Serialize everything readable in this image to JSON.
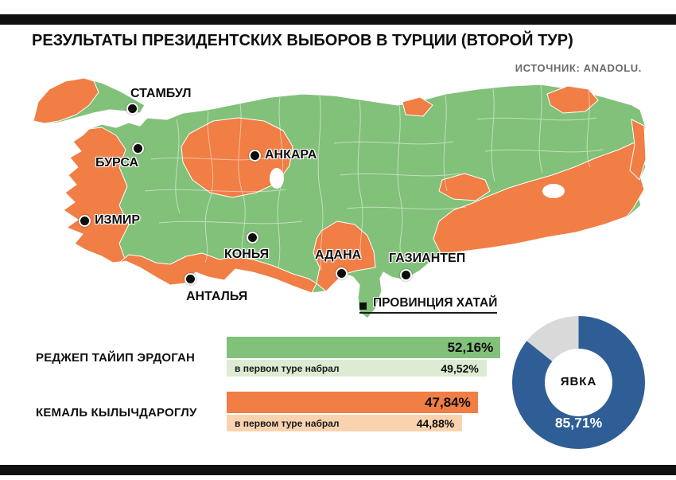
{
  "header": {
    "title": "РЕЗУЛЬТАТЫ ПРЕЗИДЕНТСКИХ ВЫБОРОВ В ТУРЦИИ (ВТОРОЙ ТУР)",
    "source": "ИСТОЧНИК: ANADOLU."
  },
  "map": {
    "cities": [
      "СТАМБУЛ",
      "БУРСА",
      "АНКАРА",
      "ИЗМИР",
      "КОНЬЯ",
      "АДАНА",
      "ГАЗИАНТЕП",
      "АНТАЛЬЯ"
    ],
    "callout": "ПРОВИНЦИЯ ХАТАЙ"
  },
  "colors": {
    "erdogan_green": "#82C17A",
    "erdogan_green_light": "#DCEBD2",
    "kilicdaroglu_orange": "#F07E45",
    "kilicdaroglu_orange_light": "#F9D3AF",
    "turnout_blue": "#2F5E97",
    "turnout_gray": "#D9D9D9",
    "bar_black": "#101010"
  },
  "chart_data": [
    {
      "type": "bar",
      "orientation": "horizontal",
      "categories": [
        "РЕДЖЕП ТАЙИП ЭРДОГАН",
        "КЕМАЛЬ КЫЛЫЧДАРОГЛУ"
      ],
      "note": "в первом туре набрал",
      "unit": "%",
      "xlim": [
        0,
        60
      ],
      "series": [
        {
          "name": "второй тур",
          "values": [
            52.16,
            47.84
          ],
          "labels": [
            "52,16%",
            "47,84%"
          ],
          "colors": [
            "#82C17A",
            "#F07E45"
          ]
        },
        {
          "name": "в первом туре набрал",
          "values": [
            49.52,
            44.88
          ],
          "labels": [
            "49,52%",
            "44,88%"
          ],
          "colors": [
            "#DCEBD2",
            "#F9D3AF"
          ]
        }
      ]
    },
    {
      "type": "pie",
      "subtype": "donut",
      "center_label": "ЯВКА",
      "value_label": "85,71%",
      "slices": [
        {
          "label": "ЯВКА",
          "value": 85.71,
          "color": "#2F5E97"
        },
        {
          "label": "",
          "value": 14.29,
          "color": "#D9D9D9"
        }
      ]
    }
  ]
}
